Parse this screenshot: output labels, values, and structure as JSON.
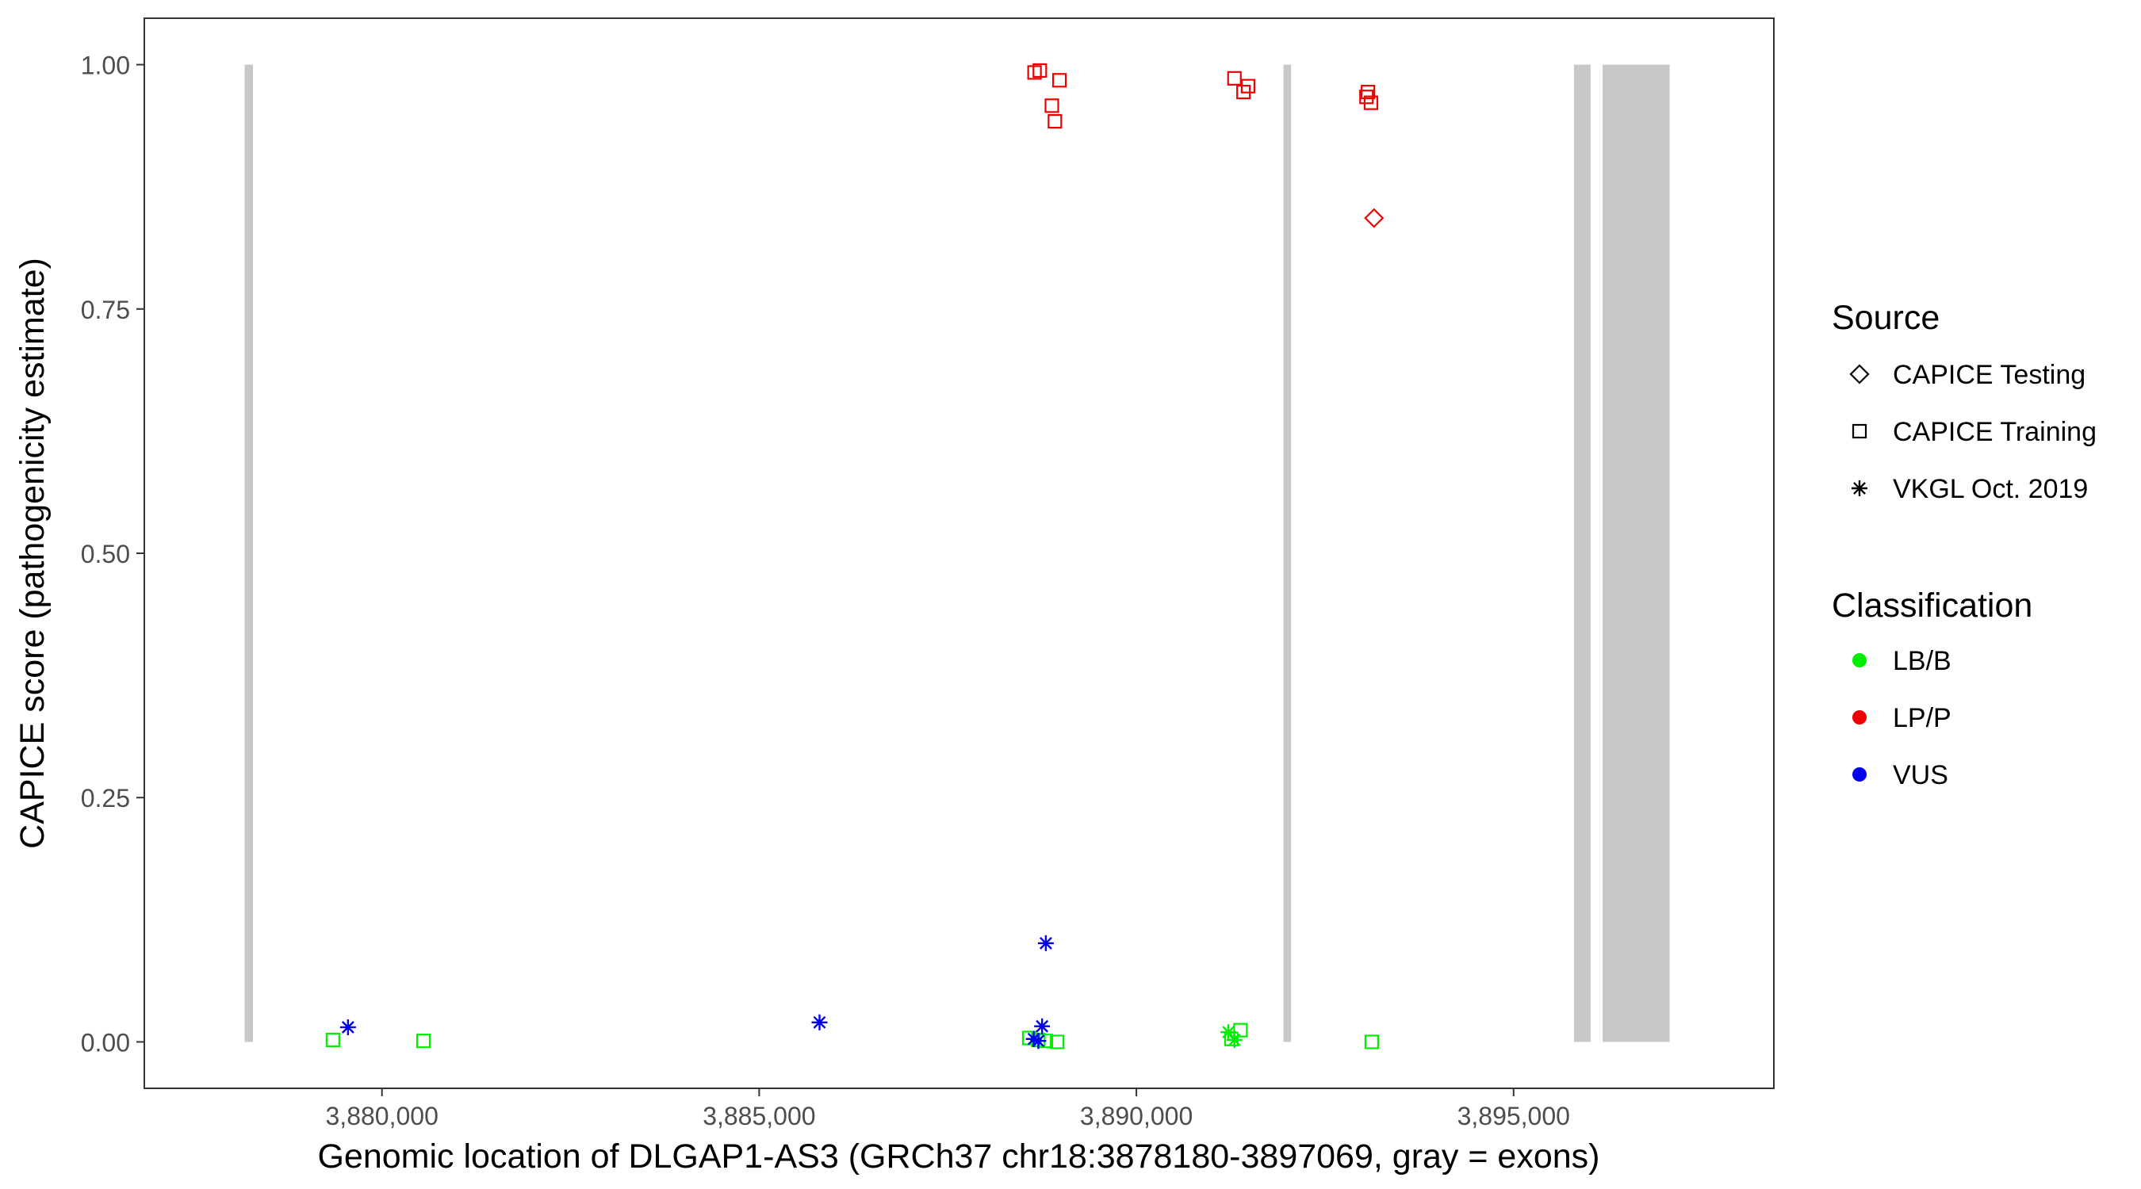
{
  "chart_data": {
    "type": "scatter",
    "xlabel": "Genomic location of DLGAP1-AS3 (GRCh37 chr18:3878180-3897069, gray = exons)",
    "ylabel": "CAPICE score (pathogenicity estimate)",
    "xlim": [
      3876850,
      3898450
    ],
    "ylim": [
      -0.0475,
      1.0475
    ],
    "x_ticks": [
      3880000,
      3885000,
      3890000,
      3895000
    ],
    "x_tick_labels": [
      "3,880,000",
      "3,885,000",
      "3,890,000",
      "3,895,000"
    ],
    "y_ticks": [
      0,
      0.25,
      0.5,
      0.75,
      1
    ],
    "y_tick_labels": [
      "0.00",
      "0.25",
      "0.50",
      "0.75",
      "1.00"
    ],
    "grid": false,
    "exons": [
      {
        "start": 3878180,
        "end": 3878290
      },
      {
        "start": 3891950,
        "end": 3892050
      },
      {
        "start": 3895800,
        "end": 3896020
      },
      {
        "start": 3896180,
        "end": 3897069
      }
    ],
    "exon_color": "#c8c8c8",
    "legend": {
      "placement": "right",
      "source_title": "Source",
      "source_items": [
        {
          "label": "CAPICE Testing",
          "shape": "diamond"
        },
        {
          "label": "CAPICE Training",
          "shape": "square"
        },
        {
          "label": "VKGL Oct. 2019",
          "shape": "asterisk"
        }
      ],
      "class_title": "Classification",
      "class_items": [
        {
          "label": "LB/B",
          "color": "#00ee00"
        },
        {
          "label": "LP/P",
          "color": "#ee0000"
        },
        {
          "label": "VUS",
          "color": "#0000ee"
        }
      ]
    },
    "points": [
      {
        "x": 3888650,
        "y": 0.992,
        "source": "CAPICE Training",
        "class": "LP/P"
      },
      {
        "x": 3888720,
        "y": 0.994,
        "source": "CAPICE Training",
        "class": "LP/P"
      },
      {
        "x": 3888980,
        "y": 0.984,
        "source": "CAPICE Training",
        "class": "LP/P"
      },
      {
        "x": 3888880,
        "y": 0.958,
        "source": "CAPICE Training",
        "class": "LP/P"
      },
      {
        "x": 3888920,
        "y": 0.942,
        "source": "CAPICE Training",
        "class": "LP/P"
      },
      {
        "x": 3891300,
        "y": 0.986,
        "source": "CAPICE Training",
        "class": "LP/P"
      },
      {
        "x": 3891480,
        "y": 0.978,
        "source": "CAPICE Training",
        "class": "LP/P"
      },
      {
        "x": 3891420,
        "y": 0.972,
        "source": "CAPICE Training",
        "class": "LP/P"
      },
      {
        "x": 3893070,
        "y": 0.972,
        "source": "CAPICE Training",
        "class": "LP/P"
      },
      {
        "x": 3893050,
        "y": 0.967,
        "source": "CAPICE Training",
        "class": "LP/P"
      },
      {
        "x": 3893110,
        "y": 0.961,
        "source": "CAPICE Training",
        "class": "LP/P"
      },
      {
        "x": 3893150,
        "y": 0.843,
        "source": "CAPICE Testing",
        "class": "LP/P"
      },
      {
        "x": 3879350,
        "y": 0.002,
        "source": "CAPICE Training",
        "class": "LB/B"
      },
      {
        "x": 3880550,
        "y": 0.001,
        "source": "CAPICE Training",
        "class": "LB/B"
      },
      {
        "x": 3888580,
        "y": 0.004,
        "source": "CAPICE Training",
        "class": "LB/B"
      },
      {
        "x": 3888700,
        "y": 0.002,
        "source": "CAPICE Training",
        "class": "LB/B"
      },
      {
        "x": 3888800,
        "y": 0.001,
        "source": "CAPICE Training",
        "class": "LB/B"
      },
      {
        "x": 3888950,
        "y": 0.0,
        "source": "CAPICE Training",
        "class": "LB/B"
      },
      {
        "x": 3891380,
        "y": 0.012,
        "source": "CAPICE Training",
        "class": "LB/B"
      },
      {
        "x": 3891260,
        "y": 0.003,
        "source": "CAPICE Training",
        "class": "LB/B"
      },
      {
        "x": 3893120,
        "y": 0.0,
        "source": "CAPICE Training",
        "class": "LB/B"
      },
      {
        "x": 3891220,
        "y": 0.01,
        "source": "VKGL Oct. 2019",
        "class": "LB/B"
      },
      {
        "x": 3891300,
        "y": 0.002,
        "source": "VKGL Oct. 2019",
        "class": "LB/B"
      },
      {
        "x": 3879550,
        "y": 0.015,
        "source": "VKGL Oct. 2019",
        "class": "VUS"
      },
      {
        "x": 3885800,
        "y": 0.02,
        "source": "VKGL Oct. 2019",
        "class": "VUS"
      },
      {
        "x": 3888800,
        "y": 0.101,
        "source": "VKGL Oct. 2019",
        "class": "VUS"
      },
      {
        "x": 3888750,
        "y": 0.016,
        "source": "VKGL Oct. 2019",
        "class": "VUS"
      },
      {
        "x": 3888640,
        "y": 0.003,
        "source": "VKGL Oct. 2019",
        "class": "VUS"
      },
      {
        "x": 3888700,
        "y": 0.001,
        "source": "VKGL Oct. 2019",
        "class": "VUS"
      }
    ]
  }
}
